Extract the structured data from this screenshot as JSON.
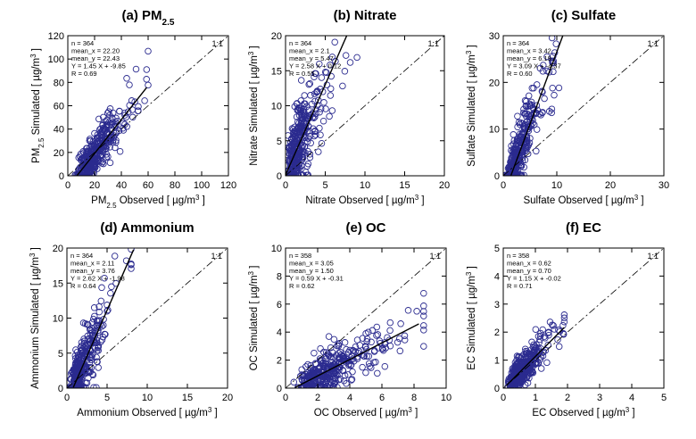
{
  "colors": {
    "marker": "#2b2b8f",
    "axis": "#000000",
    "fit_line": "#000000",
    "one_to_one": "#000000"
  },
  "chart_data": [
    {
      "id": "a",
      "type": "scatter",
      "title": "(a) PM",
      "title_sub": "2.5",
      "xlabel": "PM2.5 Observed [ µg/m3 ]",
      "xlabel_parts": [
        "PM",
        "2.5",
        " Observed [ µg/m",
        "3",
        " ]"
      ],
      "ylabel": "PM2.5 Simulated [ µg/m3 ]",
      "ylabel_parts": [
        "PM",
        "2.5",
        " Simulated [ µg/m",
        "3",
        " ]"
      ],
      "xlim": [
        0,
        120
      ],
      "ylim": [
        0,
        120
      ],
      "xticks": [
        "0",
        "20",
        "40",
        "60",
        "80",
        "100",
        "120"
      ],
      "yticks": [
        "0",
        "20",
        "40",
        "60",
        "80",
        "100",
        "120"
      ],
      "stats": [
        "n = 364",
        "mean_x = 22.20",
        "mean_y = 22.43",
        "Y = 1.45 X + -9.85",
        "R = 0.69"
      ],
      "one_to_one_label": "1:1",
      "fit": {
        "slope": 1.45,
        "intercept": -9.85,
        "x_range": [
          6.8,
          59
        ]
      },
      "cluster": {
        "n": 364,
        "mean_x": 22.2,
        "sd_x": 11,
        "min_x": 1.5,
        "max_x": 60,
        "scatter_sd": 9
      }
    },
    {
      "id": "b",
      "type": "scatter",
      "title": "(b) Nitrate",
      "xlabel": "Nitrate Observed [ µg/m3 ]",
      "xlabel_parts": [
        "Nitrate Observed [ µg/m",
        "3",
        " ]"
      ],
      "ylabel": "Nitrate Simulated [ µg/m3 ]",
      "ylabel_parts": [
        "Nitrate Simulated [ µg/m",
        "3",
        " ]"
      ],
      "xlim": [
        0,
        20
      ],
      "ylim": [
        0,
        20
      ],
      "xticks": [
        "0",
        "5",
        "10",
        "15",
        "20"
      ],
      "yticks": [
        "0",
        "5",
        "10",
        "15",
        "20"
      ],
      "stats": [
        "n = 364",
        "mean_x = 2.1",
        "mean_y = 5.47",
        "Y = 2.58 X + 0.12",
        "R = 0.55"
      ],
      "one_to_one_label": "1:1",
      "fit": {
        "slope": 2.58,
        "intercept": 0.12,
        "x_range": [
          0,
          7.7
        ]
      },
      "cluster": {
        "n": 364,
        "mean_x": 2.1,
        "sd_x": 1.6,
        "min_x": 0.1,
        "max_x": 9,
        "scatter_sd": 3
      }
    },
    {
      "id": "c",
      "type": "scatter",
      "title": "(c) Sulfate",
      "xlabel": "Sulfate Observed [ µg/m3 ]",
      "xlabel_parts": [
        "Sulfate Observed [ µg/m",
        "3",
        " ]"
      ],
      "ylabel": "Sulfate Simulated [ µg/m3 ]",
      "ylabel_parts": [
        "Sulfate Simulated [ µg/m",
        "3",
        " ]"
      ],
      "xlim": [
        0,
        30
      ],
      "ylim": [
        0,
        30
      ],
      "xticks": [
        "0",
        "10",
        "20",
        "30"
      ],
      "yticks": [
        "0",
        "10",
        "20",
        "30"
      ],
      "stats": [
        "n = 364",
        "mean_x = 3.42",
        "mean_y = 6.19",
        "Y = 3.09 X + -4.37",
        "R = 0.60"
      ],
      "one_to_one_label": "1:1",
      "fit": {
        "slope": 3.09,
        "intercept": -4.37,
        "x_range": [
          1.4,
          11.2
        ]
      },
      "cluster": {
        "n": 364,
        "mean_x": 3.42,
        "sd_x": 2.5,
        "min_x": 0.2,
        "max_x": 14.5,
        "scatter_sd": 3.5
      }
    },
    {
      "id": "d",
      "type": "scatter",
      "title": "(d) Ammonium",
      "xlabel": "Ammonium Observed [ µg/m3 ]",
      "xlabel_parts": [
        "Ammonium Observed [ µg/m",
        "3",
        " ]"
      ],
      "ylabel": "Ammonium Simulated [ µg/m3 ]",
      "ylabel_parts": [
        "Ammonium Simulated [ µg/m",
        "3",
        " ]"
      ],
      "xlim": [
        0,
        20
      ],
      "ylim": [
        0,
        20
      ],
      "xticks": [
        "0",
        "5",
        "10",
        "15",
        "20"
      ],
      "yticks": [
        "0",
        "5",
        "10",
        "15",
        "20"
      ],
      "stats": [
        "n = 364",
        "mean_x = 2.11",
        "mean_y = 3.76",
        "Y = 2.62 X + -1.98",
        "R = 0.64"
      ],
      "one_to_one_label": "1:1",
      "fit": {
        "slope": 2.62,
        "intercept": -1.98,
        "x_range": [
          0.8,
          8.3
        ]
      },
      "cluster": {
        "n": 364,
        "mean_x": 2.11,
        "sd_x": 1.5,
        "min_x": 0.1,
        "max_x": 8,
        "scatter_sd": 2.2
      }
    },
    {
      "id": "e",
      "type": "scatter",
      "title": "(e) OC",
      "xlabel": "OC Observed [ µg/m3 ]",
      "xlabel_parts": [
        "OC Observed [ µg/m",
        "3",
        " ]"
      ],
      "ylabel": "OC Simulated [ µg/m3 ]",
      "ylabel_parts": [
        "OC Simulated [ µg/m",
        "3",
        " ]"
      ],
      "xlim": [
        0,
        10
      ],
      "ylim": [
        0,
        10
      ],
      "xticks": [
        "0",
        "2",
        "4",
        "6",
        "8",
        "10"
      ],
      "yticks": [
        "0",
        "2",
        "4",
        "6",
        "8",
        "10"
      ],
      "stats": [
        "n = 358",
        "mean_x = 3.05",
        "mean_y = 1.50",
        "Y = 0.59 X + -0.31",
        "R = 0.62"
      ],
      "one_to_one_label": "1:1",
      "fit": {
        "slope": 0.59,
        "intercept": -0.31,
        "x_range": [
          0.6,
          8.3
        ]
      },
      "cluster": {
        "n": 358,
        "mean_x": 3.05,
        "sd_x": 1.7,
        "min_x": 0.5,
        "max_x": 8.6,
        "scatter_sd": 0.7
      }
    },
    {
      "id": "f",
      "type": "scatter",
      "title": "(f) EC",
      "xlabel": "EC Observed [ µg/m3 ]",
      "xlabel_parts": [
        "EC Observed [ µg/m",
        "3",
        " ]"
      ],
      "ylabel": "EC Simulated [ µg/m3 ]",
      "ylabel_parts": [
        "EC Simulated [ µg/m",
        "3",
        " ]"
      ],
      "xlim": [
        0,
        5
      ],
      "ylim": [
        0,
        5
      ],
      "xticks": [
        "0",
        "1",
        "2",
        "3",
        "4",
        "5"
      ],
      "yticks": [
        "0",
        "1",
        "2",
        "3",
        "4",
        "5"
      ],
      "stats": [
        "n = 358",
        "mean_x = 0.62",
        "mean_y = 0.70",
        "Y = 1.15 X + -0.02",
        "R = 0.71"
      ],
      "one_to_one_label": "1:1",
      "fit": {
        "slope": 1.15,
        "intercept": -0.02,
        "x_range": [
          0.1,
          1.9
        ]
      },
      "cluster": {
        "n": 358,
        "mean_x": 0.62,
        "sd_x": 0.35,
        "min_x": 0.1,
        "max_x": 1.9,
        "scatter_sd": 0.25
      }
    }
  ]
}
